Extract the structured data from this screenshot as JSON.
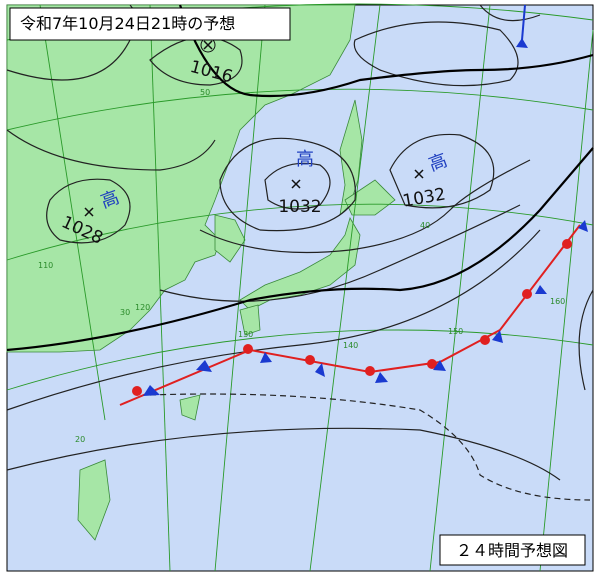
{
  "header": {
    "title": "令和7年10月24日21時の予想"
  },
  "footer": {
    "label": "２４時間予想図"
  },
  "pressure_systems": [
    {
      "symbol": "高",
      "value": 1028
    },
    {
      "symbol": "高",
      "value": 1032
    },
    {
      "symbol": "高",
      "value": 1032
    },
    {
      "value": 1016
    }
  ],
  "latitude_labels": [
    50,
    40,
    30,
    20
  ],
  "longitude_labels": [
    110,
    120,
    130,
    140,
    150,
    160
  ]
}
